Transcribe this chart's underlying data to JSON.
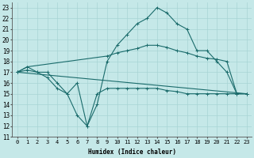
{
  "xlabel": "Humidex (Indice chaleur)",
  "ylabel": "",
  "bg_color": "#c5e8e8",
  "line_color": "#1a6b6b",
  "grid_color": "#a8d4d4",
  "xlim": [
    -0.5,
    23.5
  ],
  "ylim": [
    11,
    23.5
  ],
  "xticks": [
    0,
    1,
    2,
    3,
    4,
    5,
    6,
    7,
    8,
    9,
    10,
    11,
    12,
    13,
    14,
    15,
    16,
    17,
    18,
    19,
    20,
    21,
    22,
    23
  ],
  "yticks": [
    11,
    12,
    13,
    14,
    15,
    16,
    17,
    18,
    19,
    20,
    21,
    22,
    23
  ],
  "lines": [
    {
      "x": [
        0,
        1,
        2,
        3,
        4,
        5,
        6,
        7,
        8,
        9,
        10,
        11,
        12,
        13,
        14,
        15,
        16,
        17,
        18,
        19,
        20,
        21,
        22,
        23
      ],
      "y": [
        17,
        17.5,
        17,
        17,
        16,
        15,
        13,
        12,
        14,
        18,
        19.5,
        20.5,
        21.5,
        22,
        23,
        22.5,
        21.5,
        21,
        19,
        19,
        18,
        17,
        15,
        15
      ]
    },
    {
      "x": [
        0,
        1,
        9,
        10,
        11,
        12,
        13,
        14,
        15,
        16,
        17,
        18,
        19,
        20,
        21,
        22,
        23
      ],
      "y": [
        17,
        17.5,
        18.5,
        18.8,
        19,
        19.2,
        19.5,
        19.5,
        19.3,
        19,
        18.8,
        18.5,
        18.3,
        18.2,
        18,
        15,
        15
      ]
    },
    {
      "x": [
        0,
        23
      ],
      "y": [
        17,
        15
      ]
    },
    {
      "x": [
        0,
        1,
        2,
        3,
        4,
        5,
        6,
        7,
        8,
        9,
        10,
        11,
        12,
        13,
        14,
        15,
        16,
        17,
        18,
        19,
        20,
        21,
        22,
        23
      ],
      "y": [
        17,
        17.2,
        17,
        16.5,
        15.5,
        15,
        16,
        12,
        15,
        15.5,
        15.5,
        15.5,
        15.5,
        15.5,
        15.5,
        15.3,
        15.2,
        15,
        15,
        15,
        15,
        15,
        15,
        15
      ]
    }
  ]
}
